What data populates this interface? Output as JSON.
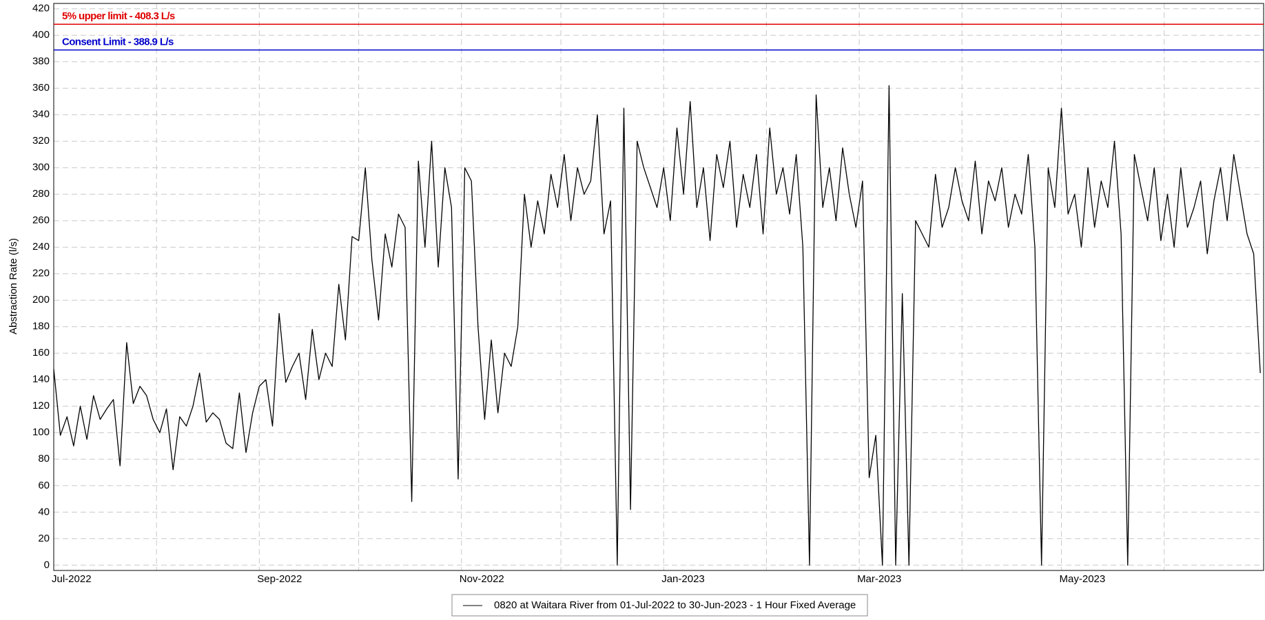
{
  "chart_data": {
    "type": "line",
    "y_label": "Abstraction Rate (l/s)",
    "xlim": [
      0,
      365
    ],
    "ylim": [
      -4,
      424
    ],
    "yticks": [
      0,
      20,
      40,
      60,
      80,
      100,
      120,
      140,
      160,
      180,
      200,
      220,
      240,
      260,
      280,
      300,
      320,
      340,
      360,
      380,
      400,
      420
    ],
    "xticks": [
      {
        "value": 0,
        "label": "Jul-2022"
      },
      {
        "value": 62,
        "label": "Sep-2022"
      },
      {
        "value": 123,
        "label": "Nov-2022"
      },
      {
        "value": 184,
        "label": "Jan-2023"
      },
      {
        "value": 243,
        "label": "Mar-2023"
      },
      {
        "value": 304,
        "label": "May-2023"
      }
    ],
    "xgrid": [
      31,
      92,
      153,
      215,
      274,
      335
    ],
    "grid": true,
    "reference_lines": [
      {
        "value": 408.3,
        "label": "5% upper limit - 408.3 L/s",
        "color": "#e00000"
      },
      {
        "value": 388.9,
        "label": "Consent Limit - 388.9 L/s",
        "color": "#0000cc"
      }
    ],
    "x": [
      0,
      2,
      4,
      6,
      8,
      10,
      12,
      14,
      16,
      18,
      20,
      22,
      24,
      26,
      28,
      30,
      32,
      34,
      36,
      38,
      40,
      42,
      44,
      46,
      48,
      50,
      52,
      54,
      56,
      58,
      60,
      62,
      64,
      66,
      68,
      70,
      72,
      74,
      76,
      78,
      80,
      82,
      84,
      86,
      88,
      90,
      92,
      94,
      96,
      98,
      100,
      102,
      104,
      106,
      108,
      110,
      112,
      114,
      116,
      118,
      120,
      122,
      124,
      126,
      128,
      130,
      132,
      134,
      136,
      138,
      140,
      142,
      144,
      146,
      148,
      150,
      152,
      154,
      156,
      158,
      160,
      162,
      164,
      166,
      168,
      170,
      172,
      174,
      176,
      178,
      180,
      182,
      184,
      186,
      188,
      190,
      192,
      194,
      196,
      198,
      200,
      202,
      204,
      206,
      208,
      210,
      212,
      214,
      216,
      218,
      220,
      222,
      224,
      226,
      228,
      230,
      232,
      234,
      236,
      238,
      240,
      242,
      244,
      246,
      248,
      250,
      252,
      254,
      256,
      258,
      260,
      262,
      264,
      266,
      268,
      270,
      272,
      274,
      276,
      278,
      280,
      282,
      284,
      286,
      288,
      290,
      292,
      294,
      296,
      298,
      300,
      302,
      304,
      306,
      308,
      310,
      312,
      314,
      316,
      318,
      320,
      322,
      324,
      326,
      328,
      330,
      332,
      334,
      336,
      338,
      340,
      342,
      344,
      346,
      348,
      350,
      352,
      354,
      356,
      358,
      360,
      362,
      364
    ],
    "series": [
      {
        "name": "0820 at Waitara River from 01-Jul-2022 to 30-Jun-2023 - 1 Hour Fixed Average",
        "color": "#000000",
        "values": [
          148,
          98,
          112,
          90,
          120,
          95,
          128,
          110,
          118,
          125,
          75,
          168,
          122,
          135,
          128,
          110,
          100,
          118,
          72,
          112,
          105,
          120,
          145,
          108,
          115,
          110,
          92,
          88,
          130,
          85,
          115,
          135,
          140,
          105,
          190,
          138,
          150,
          160,
          125,
          178,
          140,
          160,
          150,
          212,
          170,
          248,
          245,
          300,
          230,
          185,
          250,
          225,
          265,
          255,
          48,
          305,
          240,
          320,
          225,
          300,
          270,
          65,
          300,
          290,
          180,
          110,
          170,
          115,
          160,
          150,
          180,
          280,
          240,
          275,
          250,
          295,
          270,
          310,
          260,
          300,
          280,
          290,
          340,
          250,
          275,
          0,
          345,
          42,
          320,
          300,
          285,
          270,
          300,
          260,
          330,
          280,
          350,
          270,
          300,
          245,
          310,
          285,
          320,
          255,
          295,
          270,
          310,
          250,
          330,
          280,
          300,
          265,
          310,
          240,
          0,
          355,
          270,
          300,
          260,
          315,
          280,
          255,
          290,
          66,
          98,
          0,
          362,
          0,
          205,
          0,
          260,
          250,
          240,
          295,
          255,
          270,
          300,
          275,
          260,
          305,
          250,
          290,
          275,
          300,
          255,
          280,
          265,
          310,
          240,
          0,
          300,
          270,
          345,
          265,
          280,
          240,
          300,
          255,
          290,
          270,
          320,
          250,
          0,
          310,
          285,
          260,
          300,
          245,
          280,
          240,
          300,
          255,
          270,
          290,
          235,
          275,
          300,
          260,
          310,
          280,
          250,
          235,
          145
        ]
      }
    ]
  }
}
